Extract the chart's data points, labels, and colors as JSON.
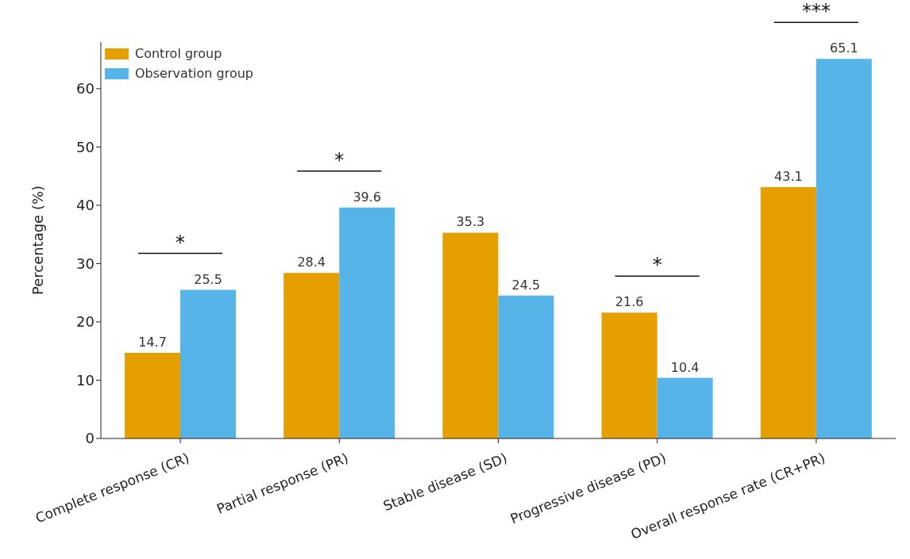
{
  "chart_data": {
    "type": "bar",
    "ylabel": "Percentage (%)",
    "categories": [
      "Complete response (CR)",
      "Partial response (PR)",
      "Stable disease (SD)",
      "Progressive disease (PD)",
      "Overall response rate (CR+PR)"
    ],
    "series": [
      {
        "name": "Control group",
        "color": "#e69f00",
        "values": [
          14.7,
          28.4,
          35.3,
          21.6,
          43.1
        ]
      },
      {
        "name": "Observation group",
        "color": "#56b4e9",
        "values": [
          25.5,
          39.6,
          24.5,
          10.4,
          65.1
        ]
      }
    ],
    "ylim": [
      0,
      68
    ],
    "yticks": [
      0,
      10,
      20,
      30,
      40,
      50,
      60
    ],
    "grid": false,
    "legend": "top left",
    "data_labels": true,
    "annotations": [
      "*",
      "*",
      "*",
      "***"
    ]
  }
}
